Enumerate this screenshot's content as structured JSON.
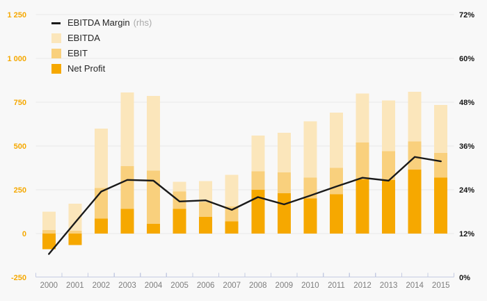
{
  "legend": {
    "items": [
      {
        "label": "EBITDA Margin",
        "suffix": "(rhs)",
        "swatch": "line",
        "color": "#1a1a1a"
      },
      {
        "label": "EBITDA",
        "suffix": "",
        "swatch": "box",
        "color": "#fbe6bb"
      },
      {
        "label": "EBIT",
        "suffix": "",
        "swatch": "box",
        "color": "#f9d07d"
      },
      {
        "label": "Net Profit",
        "suffix": "",
        "swatch": "box",
        "color": "#f6a800"
      }
    ],
    "position": "top-left"
  },
  "axes": {
    "left": {
      "tick_labels": [
        "1 250",
        "1 000",
        "750",
        "500",
        "250",
        "0",
        "-250"
      ],
      "tick_values": [
        1250,
        1000,
        750,
        500,
        250,
        0,
        -250
      ],
      "range": [
        -250,
        1250
      ],
      "label_color": "#f5a800"
    },
    "right": {
      "tick_labels": [
        "72%",
        "60%",
        "48%",
        "36%",
        "24%",
        "12%",
        "0%"
      ],
      "tick_values": [
        72,
        60,
        48,
        36,
        24,
        12,
        0
      ],
      "range": [
        0,
        72
      ],
      "label_color": "#141414"
    },
    "x": {
      "tick_labels": [
        "2000",
        "2001",
        "2002",
        "2003",
        "2004",
        "2005",
        "2006",
        "2007",
        "2008",
        "2009",
        "2010",
        "2011",
        "2012",
        "2013",
        "2014",
        "2015"
      ]
    }
  },
  "colors": {
    "background": "#f8f8f8",
    "gridline": "#e8e8e8",
    "axis_line": "#c5cbe2",
    "year_label": "#7d7d7d",
    "left_axis_label": "#f5a800",
    "right_axis_label": "#141414",
    "margin_line": "#1a1a1a",
    "ebitda": "#fbe6bb",
    "ebit": "#f9d07d",
    "net_profit": "#f6a800"
  },
  "chart_data": {
    "type": "combo",
    "bar_mode": "overlay",
    "grid": "horizontal-only",
    "legend_position": "top-left",
    "categories": [
      "2000",
      "2001",
      "2002",
      "2003",
      "2004",
      "2005",
      "2006",
      "2007",
      "2008",
      "2009",
      "2010",
      "2011",
      "2012",
      "2013",
      "2014",
      "2015"
    ],
    "ylim_left": [
      -250,
      1250
    ],
    "ylim_right": [
      0,
      72
    ],
    "series": [
      {
        "name": "EBITDA",
        "type": "bar",
        "axis": "left",
        "color": "#fbe6bb",
        "values": [
          125,
          170,
          600,
          805,
          785,
          295,
          300,
          335,
          560,
          575,
          640,
          690,
          800,
          760,
          810,
          735
        ]
      },
      {
        "name": "EBIT",
        "type": "bar",
        "axis": "left",
        "color": "#f9d07d",
        "values": [
          20,
          15,
          260,
          385,
          360,
          240,
          180,
          155,
          355,
          350,
          320,
          375,
          520,
          470,
          525,
          460
        ]
      },
      {
        "name": "Net Profit",
        "type": "bar",
        "axis": "left",
        "color": "#f6a800",
        "values": [
          -90,
          -65,
          85,
          140,
          55,
          140,
          95,
          70,
          250,
          230,
          200,
          225,
          310,
          305,
          365,
          320
        ]
      },
      {
        "name": "EBITDA Margin",
        "type": "line",
        "axis": "right",
        "color": "#1a1a1a",
        "values": [
          6.4,
          15,
          23.5,
          26.7,
          26.5,
          20.8,
          21.1,
          18.5,
          22,
          20,
          22.4,
          24.9,
          27.3,
          26.5,
          33,
          31.8
        ]
      }
    ]
  }
}
